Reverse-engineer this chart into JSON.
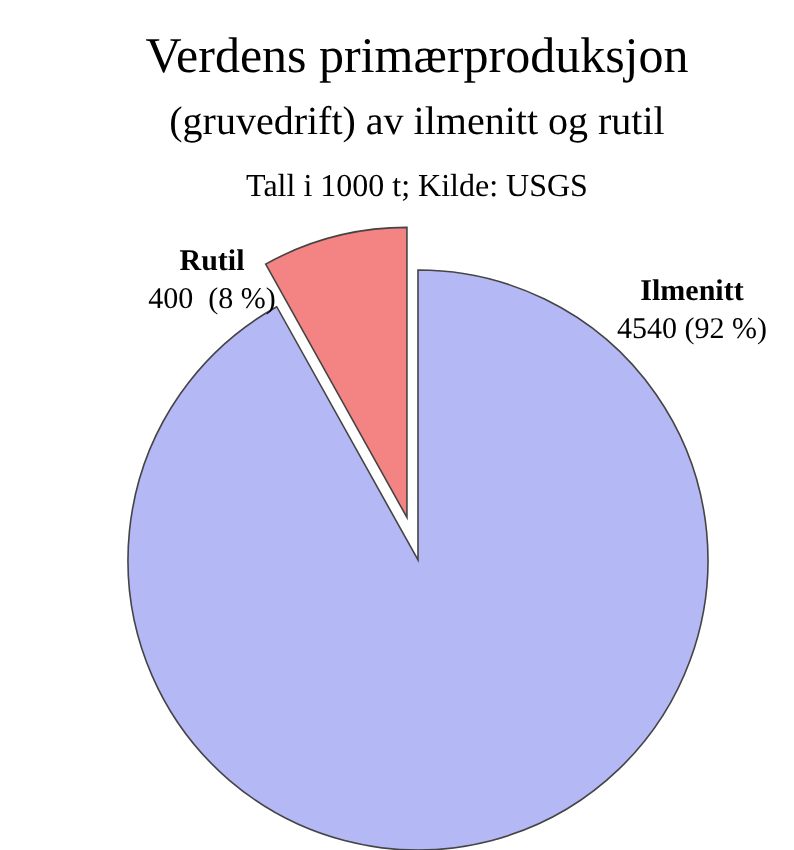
{
  "chart_data": {
    "type": "pie",
    "title": "Verdens primærproduksjon",
    "subtitle": "(gruvedrift) av ilmenitt og rutil",
    "annotations": [
      "Tall i 1000 t; Kilde: USGS"
    ],
    "categories": [
      "Ilmenitt",
      "Rutil"
    ],
    "values": [
      4540,
      400
    ],
    "value_labels": [
      "4540 (92 %)",
      "400  (8 %)"
    ],
    "colors": [
      "#b4b8f4",
      "#f48484"
    ]
  }
}
